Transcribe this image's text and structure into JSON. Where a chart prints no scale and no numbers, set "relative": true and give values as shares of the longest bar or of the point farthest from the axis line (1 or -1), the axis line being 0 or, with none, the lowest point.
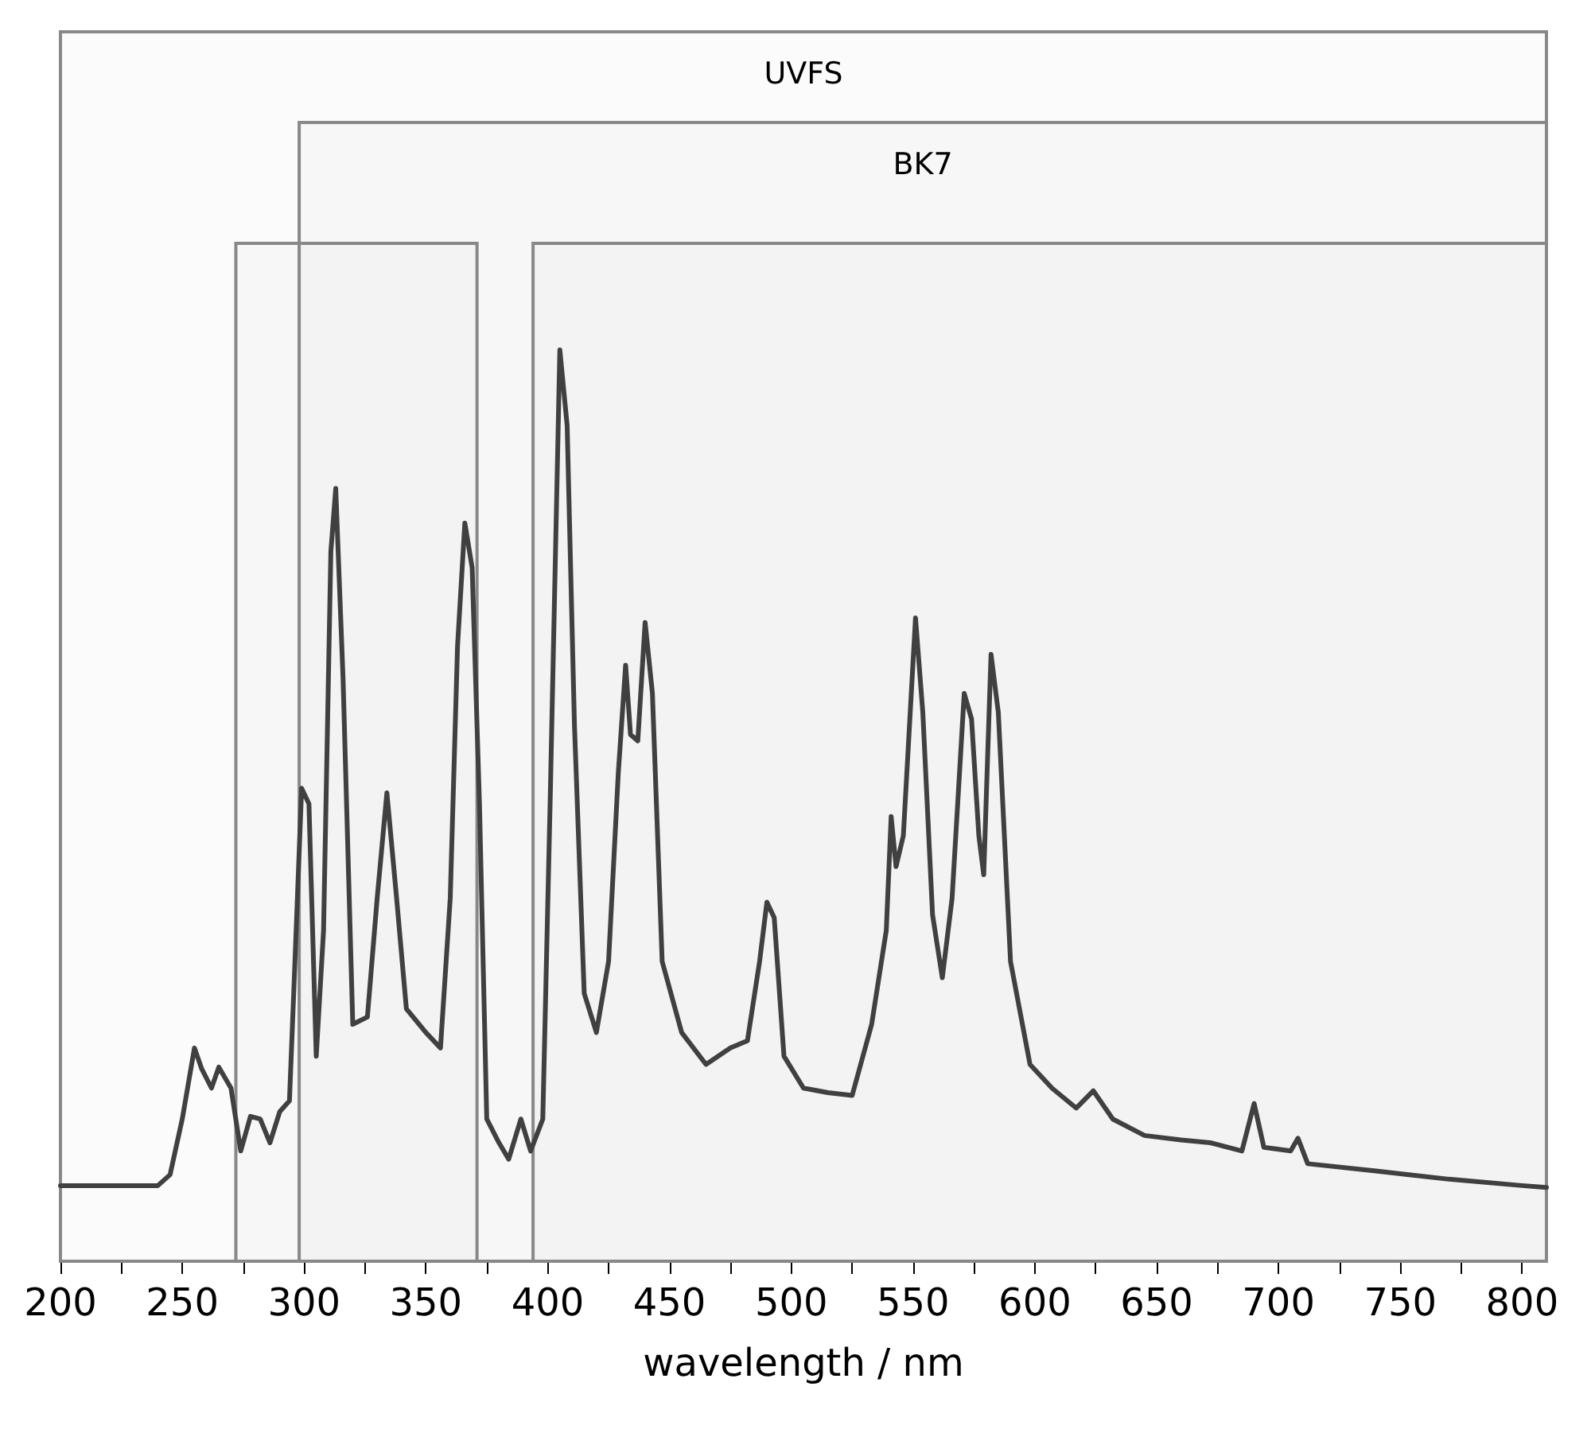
{
  "chart_data": {
    "type": "line",
    "relative": true,
    "xlabel": "wavelength / nm",
    "xlim": [
      200,
      810
    ],
    "xticks": [
      200,
      {
        "value": 225,
        "label": null
      },
      250,
      {
        "value": 275,
        "label": null
      },
      300,
      {
        "value": 325,
        "label": null
      },
      350,
      {
        "value": 375,
        "label": null
      },
      400,
      {
        "value": 425,
        "label": null
      },
      450,
      {
        "value": 475,
        "label": null
      },
      500,
      {
        "value": 525,
        "label": null
      },
      550,
      {
        "value": 575,
        "label": null
      },
      600,
      {
        "value": 625,
        "label": null
      },
      650,
      {
        "value": 675,
        "label": null
      },
      700,
      {
        "value": 725,
        "label": null
      },
      750,
      {
        "value": 775,
        "label": null
      },
      800
    ],
    "grid": false,
    "marker": "none",
    "line_style": "solid",
    "series": [
      {
        "color": "#404040",
        "x": [
          200,
          240,
          245,
          250,
          255,
          258,
          262,
          265,
          270,
          274,
          278,
          282,
          286,
          290,
          294,
          296,
          299,
          302,
          305,
          308,
          311,
          313,
          316,
          320,
          326,
          330,
          334,
          338,
          342,
          350,
          356,
          360,
          363,
          366,
          369,
          372,
          375,
          380,
          384,
          389,
          393,
          398,
          401,
          405,
          408,
          411,
          415,
          420,
          425,
          429,
          432,
          434,
          437,
          440,
          443,
          447,
          455,
          465,
          475,
          482,
          487,
          490,
          493,
          497,
          505,
          515,
          525,
          533,
          539,
          541,
          543,
          546,
          551,
          554,
          558,
          562,
          566,
          571,
          574,
          577,
          579,
          582,
          585,
          590,
          598,
          607,
          617,
          624,
          632,
          645,
          660,
          672,
          685,
          690,
          694,
          705,
          708,
          712,
          740,
          770,
          800,
          810
        ],
        "values": [
          0.083,
          0.083,
          0.095,
          0.156,
          0.234,
          0.211,
          0.19,
          0.213,
          0.19,
          0.121,
          0.159,
          0.156,
          0.13,
          0.164,
          0.176,
          0.311,
          0.519,
          0.502,
          0.225,
          0.363,
          0.779,
          0.848,
          0.64,
          0.26,
          0.268,
          0.398,
          0.514,
          0.398,
          0.277,
          0.251,
          0.234,
          0.398,
          0.675,
          0.81,
          0.761,
          0.502,
          0.156,
          0.13,
          0.112,
          0.156,
          0.121,
          0.156,
          0.502,
          1.0,
          0.917,
          0.588,
          0.294,
          0.251,
          0.329,
          0.536,
          0.654,
          0.578,
          0.571,
          0.701,
          0.623,
          0.329,
          0.251,
          0.216,
          0.234,
          0.242,
          0.329,
          0.394,
          0.377,
          0.225,
          0.19,
          0.185,
          0.182,
          0.26,
          0.363,
          0.488,
          0.433,
          0.467,
          0.706,
          0.602,
          0.38,
          0.311,
          0.398,
          0.623,
          0.595,
          0.467,
          0.424,
          0.666,
          0.602,
          0.329,
          0.216,
          0.19,
          0.168,
          0.187,
          0.156,
          0.138,
          0.133,
          0.13,
          0.121,
          0.173,
          0.125,
          0.121,
          0.135,
          0.107,
          0.099,
          0.09,
          0.083,
          0.081
        ]
      }
    ],
    "bands": [
      {
        "axis": "x",
        "from": 200,
        "to": 810,
        "label": "UVFS",
        "color": "#888888"
      },
      {
        "axis": "x",
        "from": 298,
        "to": 810,
        "label": "BK7",
        "color": "#888888"
      },
      {
        "axis": "x",
        "from": 272,
        "to": 371,
        "color": "#888888"
      },
      {
        "axis": "x",
        "from": 394,
        "to": 810,
        "color": "#888888"
      }
    ]
  }
}
